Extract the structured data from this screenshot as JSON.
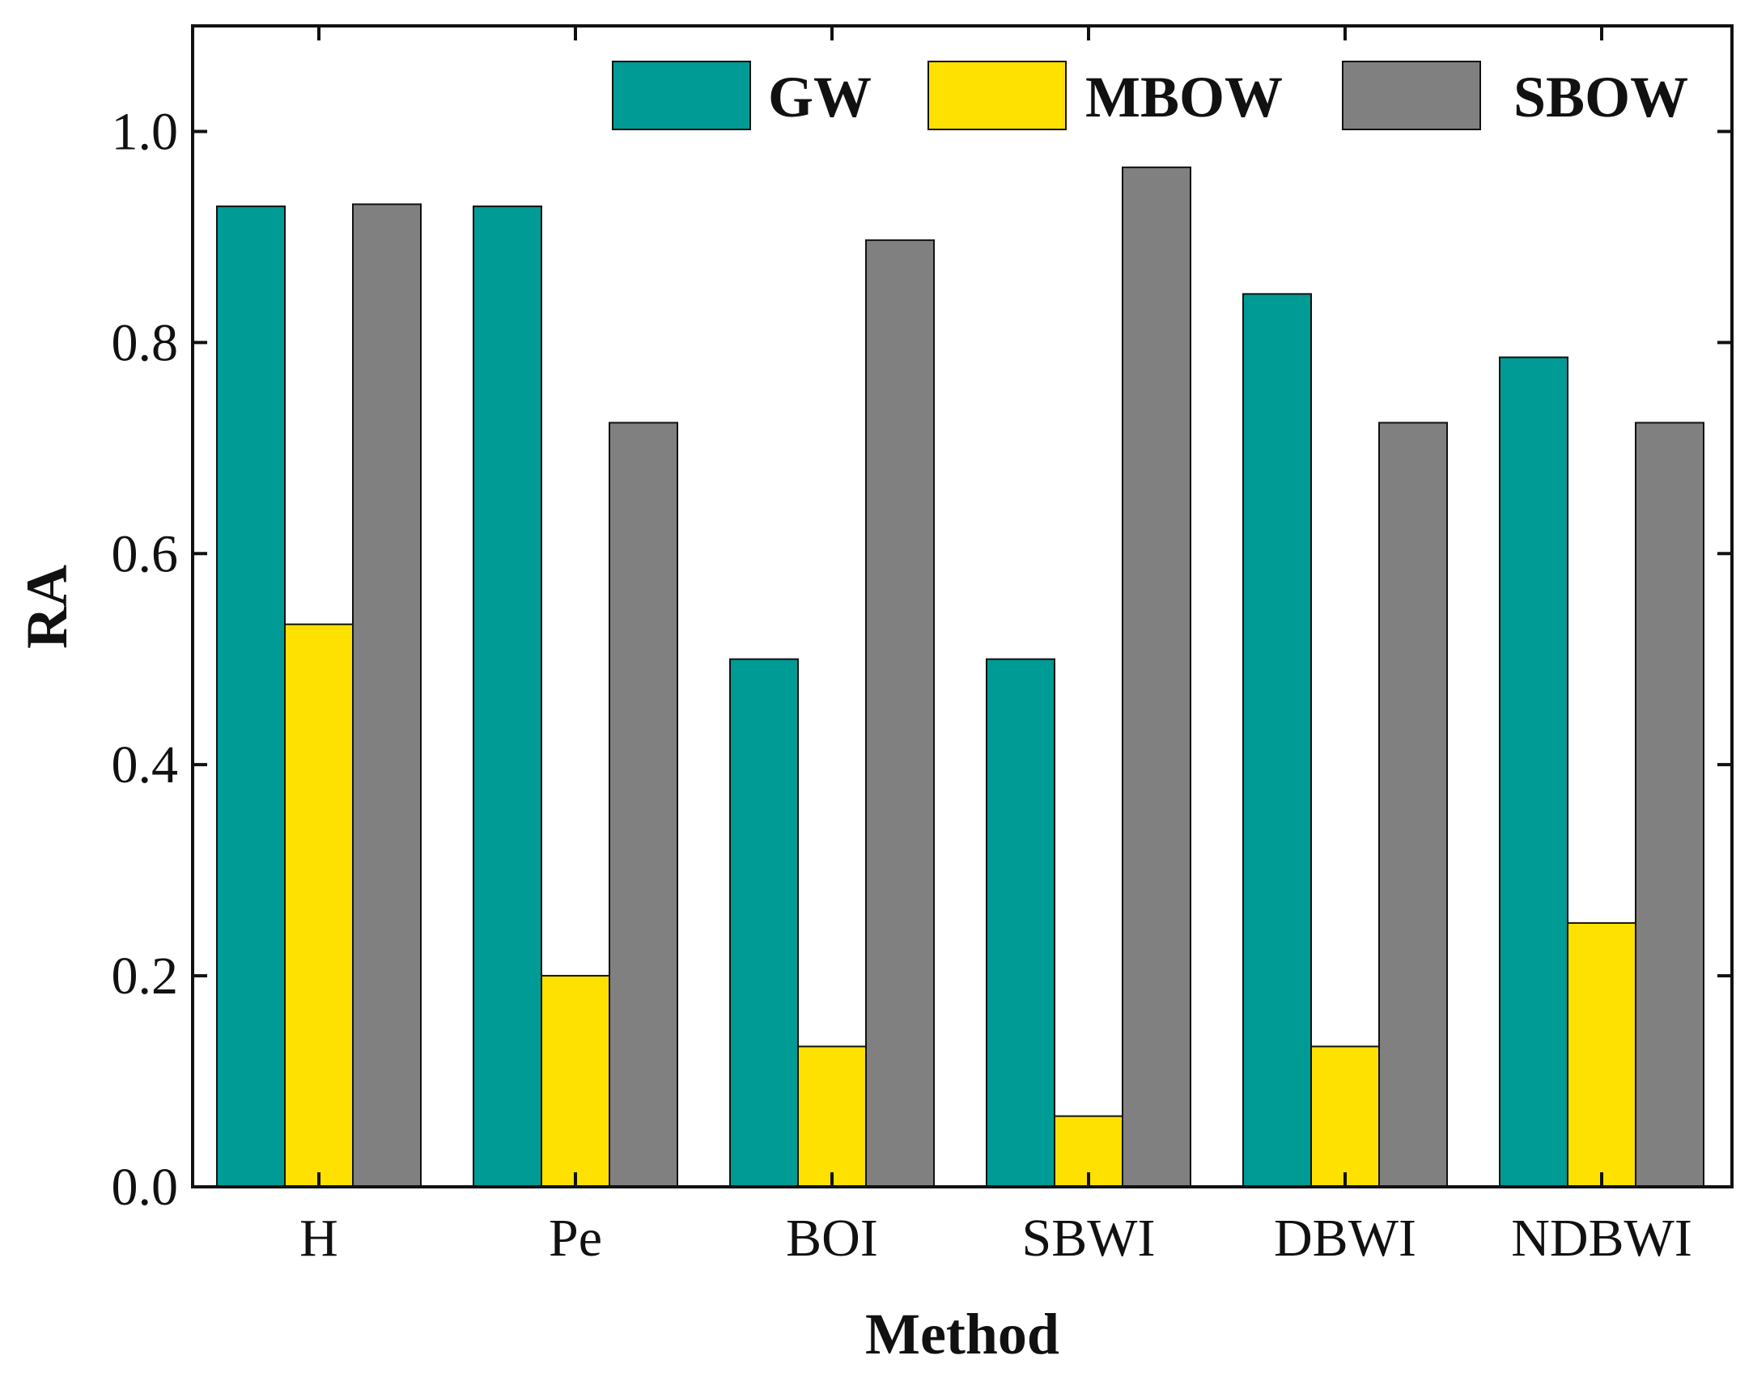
{
  "chart_data": {
    "type": "bar",
    "title": "",
    "xlabel": "Method",
    "ylabel": "RA",
    "ylim": [
      0,
      1.1
    ],
    "yticks": [
      "0.0",
      "0.2",
      "0.4",
      "0.6",
      "0.8",
      "1.0"
    ],
    "ytick_values": [
      0,
      0.2,
      0.4,
      0.6,
      0.8,
      1.0
    ],
    "categories": [
      "H",
      "Pe",
      "BOI",
      "SBWI",
      "DBWI",
      "NDBWI"
    ],
    "series": [
      {
        "name": "GW",
        "color": "#009B95",
        "values": [
          0.929,
          0.929,
          0.5,
          0.5,
          0.846,
          0.786
        ]
      },
      {
        "name": "MBOW",
        "color": "#FFE100",
        "values": [
          0.533,
          0.2,
          0.133,
          0.067,
          0.133,
          0.25
        ]
      },
      {
        "name": "SBOW",
        "color": "#808080",
        "values": [
          0.931,
          0.724,
          0.897,
          0.966,
          0.724,
          0.724
        ]
      }
    ],
    "legend_position": "top-right",
    "grid": false
  }
}
